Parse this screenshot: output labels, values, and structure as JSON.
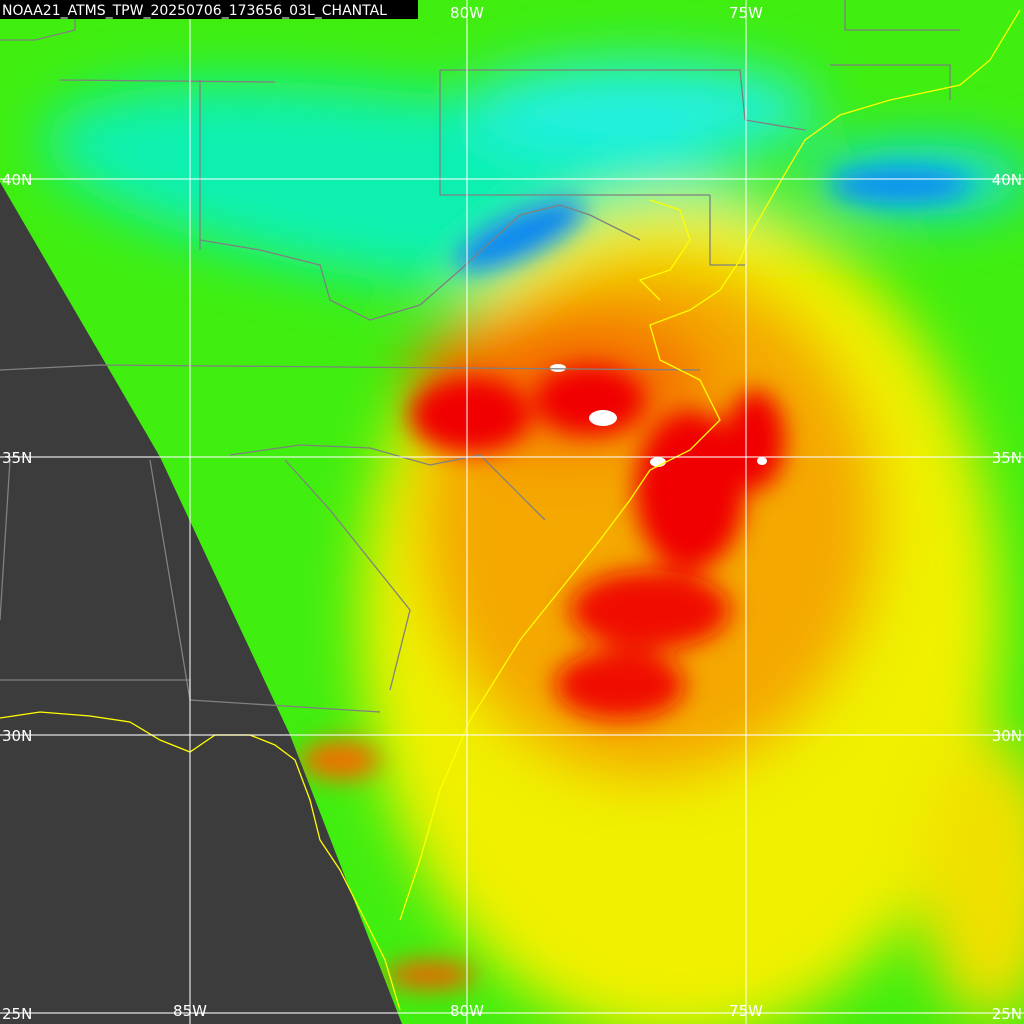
{
  "title": "NOAA21_ATMS_TPW_20250706_173656_03L_CHANTAL",
  "top_labels": [
    "80W",
    "75W"
  ],
  "bottom_labels": [
    "85W",
    "80W",
    "75W"
  ],
  "left_labels": [
    "40N",
    "35N",
    "30N",
    "25N"
  ],
  "right_labels": [
    "40N",
    "35N",
    "30N",
    "25N"
  ]
}
